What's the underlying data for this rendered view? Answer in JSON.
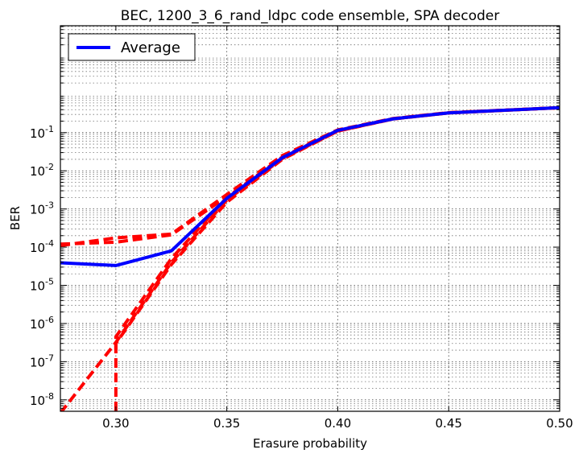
{
  "chart_data": {
    "type": "line",
    "title": "BEC, 1200_3_6_rand_ldpc code ensemble, SPA decoder",
    "xlabel": "Erasure probability",
    "ylabel": "BER",
    "xlim": [
      0.275,
      0.5
    ],
    "ylim_log10": [
      -8.3,
      1.8
    ],
    "y_scale": "log",
    "grid": true,
    "legend_position": "top-left",
    "x_ticks": [
      {
        "value": 0.3,
        "label": "0.30"
      },
      {
        "value": 0.35,
        "label": "0.35"
      },
      {
        "value": 0.4,
        "label": "0.40"
      },
      {
        "value": 0.45,
        "label": "0.45"
      },
      {
        "value": 0.5,
        "label": "0.50"
      }
    ],
    "y_ticks": [
      {
        "exp": -8,
        "base": "10",
        "power": "-8"
      },
      {
        "exp": -7,
        "base": "10",
        "power": "-7"
      },
      {
        "exp": -6,
        "base": "10",
        "power": "-6"
      },
      {
        "exp": -5,
        "base": "10",
        "power": "-5"
      },
      {
        "exp": -4,
        "base": "10",
        "power": "-4"
      },
      {
        "exp": -3,
        "base": "10",
        "power": "-3"
      },
      {
        "exp": -2,
        "base": "10",
        "power": "-2"
      },
      {
        "exp": -1,
        "base": "10",
        "power": "-1"
      }
    ],
    "series": [
      {
        "name": "Average",
        "color": "#0000ff",
        "style": "solid",
        "in_legend": true,
        "x": [
          0.275,
          0.3,
          0.325,
          0.35,
          0.375,
          0.4,
          0.425,
          0.45,
          0.5
        ],
        "y": [
          3.9e-05,
          3.3e-05,
          8e-05,
          0.0019,
          0.022,
          0.115,
          0.23,
          0.33,
          0.45
        ]
      },
      {
        "color": "#ff0000",
        "style": "dashed",
        "in_legend": false,
        "x": [
          0.275,
          0.3,
          0.325,
          0.35,
          0.375,
          0.4,
          0.425,
          0.45,
          0.5
        ],
        "y": [
          0.00011,
          0.000175,
          0.00022,
          0.0024,
          0.025,
          0.118,
          0.235,
          0.335,
          0.45
        ]
      },
      {
        "color": "#ff0000",
        "style": "dashed",
        "in_legend": false,
        "x": [
          0.275,
          0.3,
          0.325,
          0.35,
          0.375,
          0.4,
          0.425,
          0.45,
          0.5
        ],
        "y": [
          0.00012,
          0.000135,
          0.00021,
          0.0021,
          0.023,
          0.112,
          0.23,
          0.33,
          0.45
        ]
      },
      {
        "color": "#ff0000",
        "style": "dashed",
        "in_legend": false,
        "x": [
          0.275,
          0.3,
          0.325,
          0.35,
          0.375,
          0.4,
          0.425,
          0.45,
          0.5
        ],
        "y": [
          4.5e-09,
          3.2e-07,
          4e-05,
          0.0017,
          0.021,
          0.11,
          0.23,
          0.33,
          0.45
        ]
      },
      {
        "color": "#ff0000",
        "style": "dashed",
        "in_legend": false,
        "x": [
          0.3,
          0.3,
          0.325,
          0.35,
          0.375,
          0.4,
          0.425,
          0.45,
          0.5
        ],
        "y": [
          5e-09,
          4.5e-07,
          5e-05,
          0.002,
          0.023,
          0.114,
          0.232,
          0.33,
          0.45
        ]
      },
      {
        "color": "#ff0000",
        "style": "dashed",
        "in_legend": false,
        "x": [
          0.3,
          0.3,
          0.325,
          0.35,
          0.375,
          0.4,
          0.425,
          0.45,
          0.5
        ],
        "y": [
          2e-07,
          3e-07,
          3.5e-05,
          0.0015,
          0.02,
          0.11,
          0.228,
          0.328,
          0.45
        ]
      }
    ]
  }
}
